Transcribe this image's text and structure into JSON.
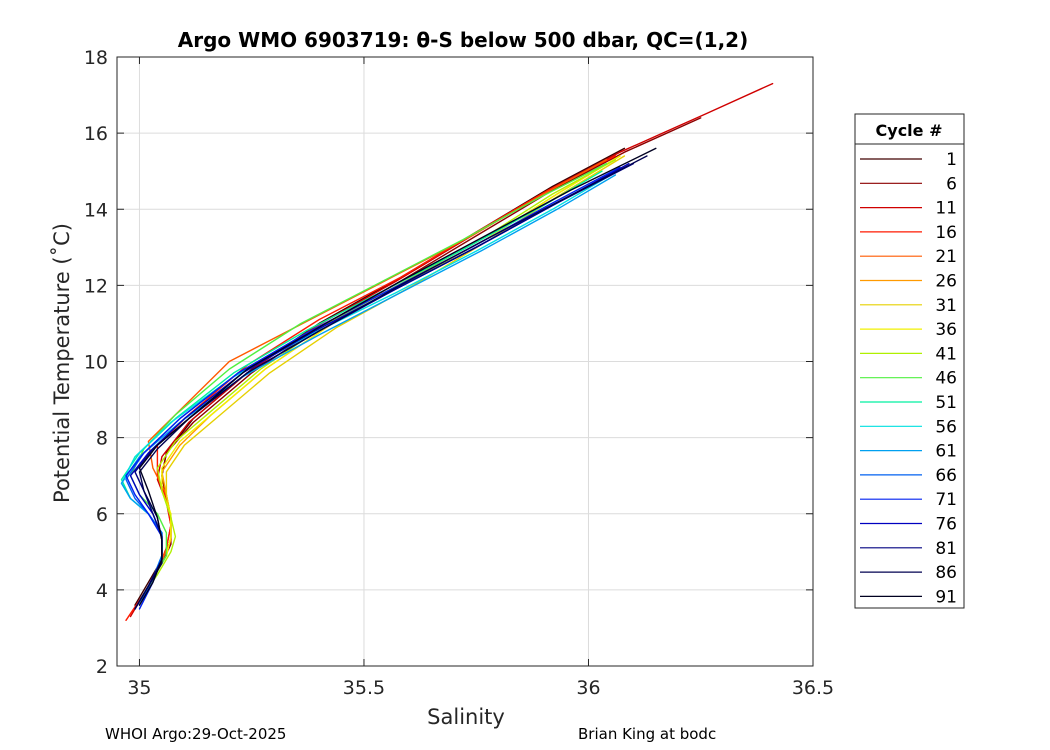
{
  "chart_data": {
    "type": "line",
    "title": "Argo WMO 6903719: θ-S below 500 dbar,  QC=(1,2)",
    "xlabel": "Salinity",
    "ylabel": "Potential Temperature (˚C)",
    "xlim": [
      34.95,
      36.5
    ],
    "ylim": [
      2,
      18
    ],
    "xticks": [
      35,
      35.5,
      36,
      36.5
    ],
    "xtick_labels": [
      "35",
      "35.5",
      "36",
      "36.5"
    ],
    "yticks": [
      2,
      4,
      6,
      8,
      10,
      12,
      14,
      16,
      18
    ],
    "ytick_labels": [
      "2",
      "4",
      "6",
      "8",
      "10",
      "12",
      "14",
      "16",
      "18"
    ],
    "grid": true,
    "legend_title": "Cycle #",
    "legend_position": "right",
    "legend": [
      {
        "label": "1",
        "color": "#400000"
      },
      {
        "label": "6",
        "color": "#8c0000"
      },
      {
        "label": "11",
        "color": "#d00000"
      },
      {
        "label": "16",
        "color": "#ff1a00"
      },
      {
        "label": "21",
        "color": "#ff5a00"
      },
      {
        "label": "26",
        "color": "#ff9a00"
      },
      {
        "label": "31",
        "color": "#e6d000"
      },
      {
        "label": "36",
        "color": "#f2f000"
      },
      {
        "label": "41",
        "color": "#b0f000"
      },
      {
        "label": "46",
        "color": "#50f040"
      },
      {
        "label": "51",
        "color": "#00f0a0"
      },
      {
        "label": "56",
        "color": "#00e0e0"
      },
      {
        "label": "61",
        "color": "#00a0f0"
      },
      {
        "label": "66",
        "color": "#0060f0"
      },
      {
        "label": "71",
        "color": "#0020f0"
      },
      {
        "label": "76",
        "color": "#0000c0"
      },
      {
        "label": "81",
        "color": "#000080"
      },
      {
        "label": "86",
        "color": "#000050"
      },
      {
        "label": "91",
        "color": "#000020"
      }
    ],
    "series": [
      {
        "name": "1",
        "color": "#400000",
        "x": [
          34.99,
          35.02,
          35.05,
          35.07,
          35.07,
          35.06,
          35.05,
          35.06,
          35.12,
          35.25,
          35.4,
          35.58,
          35.75,
          35.92,
          36.08
        ],
        "y": [
          3.6,
          4.2,
          4.8,
          5.3,
          5.8,
          6.4,
          7.0,
          7.6,
          8.5,
          9.8,
          11.0,
          12.2,
          13.4,
          14.6,
          15.6
        ]
      },
      {
        "name": "6",
        "color": "#8c0000",
        "x": [
          34.99,
          35.02,
          35.05,
          35.07,
          35.07,
          35.06,
          35.05,
          35.06,
          35.12,
          35.25,
          35.4,
          35.58,
          35.75,
          35.92,
          36.08,
          36.25
        ],
        "y": [
          3.5,
          4.1,
          4.7,
          5.2,
          5.8,
          6.4,
          7.0,
          7.6,
          8.4,
          9.7,
          10.9,
          12.1,
          13.3,
          14.5,
          15.5,
          16.4
        ]
      },
      {
        "name": "11",
        "color": "#d00000",
        "x": [
          34.98,
          35.01,
          35.04,
          35.06,
          35.07,
          35.06,
          35.04,
          35.05,
          35.11,
          35.24,
          35.39,
          35.57,
          35.74,
          35.91,
          36.07,
          36.26,
          36.41
        ],
        "y": [
          3.3,
          3.9,
          4.5,
          5.1,
          5.7,
          6.3,
          6.9,
          7.5,
          8.4,
          9.7,
          10.9,
          12.1,
          13.3,
          14.5,
          15.5,
          16.5,
          17.3
        ]
      },
      {
        "name": "16",
        "color": "#ff1a00",
        "x": [
          34.97,
          35.01,
          35.04,
          35.06,
          35.07,
          35.06,
          35.04,
          35.04,
          35.11,
          35.24,
          35.4,
          35.58,
          35.75,
          35.91,
          36.06
        ],
        "y": [
          3.2,
          3.9,
          4.5,
          5.1,
          5.7,
          6.4,
          7.0,
          7.8,
          8.6,
          9.9,
          11.1,
          12.2,
          13.4,
          14.5,
          15.4
        ]
      },
      {
        "name": "21",
        "color": "#ff5a00",
        "x": [
          35.0,
          35.03,
          35.05,
          35.07,
          35.07,
          35.06,
          35.03,
          35.02,
          35.08,
          35.2,
          35.38,
          35.56,
          35.74,
          35.9,
          36.04
        ],
        "y": [
          3.7,
          4.3,
          4.8,
          5.3,
          5.9,
          6.5,
          7.2,
          7.9,
          8.6,
          10.0,
          11.1,
          12.2,
          13.3,
          14.4,
          15.3
        ]
      },
      {
        "name": "26",
        "color": "#ff9a00",
        "x": [
          35.0,
          35.03,
          35.06,
          35.07,
          35.07,
          35.06,
          35.05,
          35.09,
          35.16,
          35.28,
          35.43,
          35.6,
          35.77,
          35.93,
          36.07
        ],
        "y": [
          3.7,
          4.3,
          4.9,
          5.4,
          5.9,
          6.5,
          7.1,
          7.8,
          8.6,
          9.8,
          11.0,
          12.1,
          13.2,
          14.4,
          15.4
        ]
      },
      {
        "name": "31",
        "color": "#e6d000",
        "x": [
          35.0,
          35.03,
          35.06,
          35.07,
          35.07,
          35.06,
          35.06,
          35.1,
          35.17,
          35.29,
          35.44,
          35.61,
          35.78,
          35.94,
          36.08
        ],
        "y": [
          3.7,
          4.3,
          4.9,
          5.4,
          5.9,
          6.5,
          7.1,
          7.8,
          8.5,
          9.7,
          10.9,
          12.0,
          13.2,
          14.4,
          15.4
        ]
      },
      {
        "name": "36",
        "color": "#f2f000",
        "x": [
          35.0,
          35.03,
          35.06,
          35.07,
          35.07,
          35.05,
          35.05,
          35.09,
          35.16,
          35.28,
          35.43,
          35.6,
          35.77,
          35.93,
          36.07
        ],
        "y": [
          3.7,
          4.3,
          4.9,
          5.4,
          6.0,
          6.6,
          7.2,
          7.9,
          8.6,
          9.8,
          11.0,
          12.1,
          13.2,
          14.4,
          15.4
        ]
      },
      {
        "name": "41",
        "color": "#b0f000",
        "x": [
          35.0,
          35.04,
          35.07,
          35.08,
          35.07,
          35.05,
          35.04,
          35.08,
          35.15,
          35.27,
          35.42,
          35.59,
          35.76,
          35.92,
          36.06
        ],
        "y": [
          3.7,
          4.4,
          5.0,
          5.4,
          5.9,
          6.6,
          7.2,
          7.9,
          8.6,
          9.8,
          11.0,
          12.1,
          13.2,
          14.4,
          15.3
        ]
      },
      {
        "name": "46",
        "color": "#50f040",
        "x": [
          35.0,
          35.03,
          35.06,
          35.06,
          35.04,
          35.0,
          34.98,
          35.01,
          35.08,
          35.2,
          35.36,
          35.54,
          35.72,
          35.89,
          36.04
        ],
        "y": [
          3.7,
          4.3,
          4.9,
          5.5,
          6.0,
          6.5,
          7.0,
          7.7,
          8.6,
          9.8,
          11.0,
          12.1,
          13.2,
          14.3,
          15.2
        ]
      },
      {
        "name": "51",
        "color": "#00f0a0",
        "x": [
          35.0,
          35.03,
          35.05,
          35.05,
          35.02,
          34.98,
          34.96,
          35.0,
          35.08,
          35.21,
          35.37,
          35.55,
          35.73,
          35.9,
          36.03
        ],
        "y": [
          3.7,
          4.3,
          4.9,
          5.5,
          6.0,
          6.4,
          6.9,
          7.6,
          8.5,
          9.7,
          10.8,
          11.9,
          13.0,
          14.1,
          15.0
        ]
      },
      {
        "name": "56",
        "color": "#00e0e0",
        "x": [
          35.0,
          35.03,
          35.05,
          35.05,
          35.02,
          34.98,
          34.96,
          34.99,
          35.07,
          35.21,
          35.38,
          35.57,
          35.75,
          35.92,
          36.05
        ],
        "y": [
          3.7,
          4.3,
          4.9,
          5.5,
          6.0,
          6.4,
          6.8,
          7.5,
          8.4,
          9.6,
          10.7,
          11.8,
          12.9,
          14.0,
          14.9
        ]
      },
      {
        "name": "61",
        "color": "#00a0f0",
        "x": [
          35.0,
          35.03,
          35.05,
          35.05,
          35.02,
          34.98,
          34.96,
          35.0,
          35.09,
          35.23,
          35.4,
          35.58,
          35.76,
          35.93,
          36.06
        ],
        "y": [
          3.7,
          4.3,
          4.9,
          5.5,
          6.0,
          6.4,
          6.8,
          7.5,
          8.4,
          9.6,
          10.7,
          11.8,
          12.9,
          14.0,
          14.9
        ]
      },
      {
        "name": "66",
        "color": "#0060f0",
        "x": [
          35.0,
          35.03,
          35.05,
          35.05,
          35.02,
          34.99,
          34.97,
          35.01,
          35.09,
          35.22,
          35.39,
          35.57,
          35.75,
          35.92,
          36.06
        ],
        "y": [
          3.6,
          4.3,
          4.9,
          5.5,
          6.0,
          6.4,
          6.9,
          7.6,
          8.5,
          9.7,
          10.8,
          11.9,
          13.0,
          14.1,
          15.0
        ]
      },
      {
        "name": "71",
        "color": "#0020f0",
        "x": [
          35.0,
          35.03,
          35.05,
          35.05,
          35.02,
          34.99,
          34.97,
          35.01,
          35.09,
          35.22,
          35.38,
          35.56,
          35.74,
          35.91,
          36.07
        ],
        "y": [
          3.5,
          4.2,
          4.8,
          5.4,
          6.0,
          6.5,
          7.0,
          7.6,
          8.5,
          9.7,
          10.8,
          11.9,
          13.0,
          14.1,
          15.1
        ]
      },
      {
        "name": "76",
        "color": "#0000c0",
        "x": [
          34.99,
          35.02,
          35.05,
          35.05,
          35.03,
          35.0,
          34.98,
          35.02,
          35.1,
          35.23,
          35.39,
          35.57,
          35.75,
          35.92,
          36.09
        ],
        "y": [
          3.5,
          4.1,
          4.8,
          5.4,
          6.0,
          6.5,
          7.0,
          7.6,
          8.5,
          9.7,
          10.8,
          11.9,
          13.0,
          14.1,
          15.2
        ]
      },
      {
        "name": "81",
        "color": "#000080",
        "x": [
          34.99,
          35.02,
          35.05,
          35.05,
          35.03,
          35.01,
          34.99,
          35.03,
          35.11,
          35.24,
          35.4,
          35.57,
          35.75,
          35.92,
          36.1
        ],
        "y": [
          3.5,
          4.1,
          4.8,
          5.4,
          6.0,
          6.6,
          7.1,
          7.7,
          8.5,
          9.7,
          10.8,
          11.9,
          13.0,
          14.1,
          15.2
        ]
      },
      {
        "name": "86",
        "color": "#000050",
        "x": [
          34.99,
          35.02,
          35.05,
          35.05,
          35.04,
          35.01,
          35.0,
          35.04,
          35.11,
          35.24,
          35.4,
          35.58,
          35.77,
          35.95,
          36.13
        ],
        "y": [
          3.5,
          4.1,
          4.7,
          5.3,
          5.9,
          6.6,
          7.1,
          7.7,
          8.5,
          9.7,
          10.8,
          12.0,
          13.2,
          14.3,
          15.4
        ]
      },
      {
        "name": "91",
        "color": "#000020",
        "x": [
          35.0,
          35.03,
          35.05,
          35.05,
          35.04,
          35.02,
          35.0,
          35.04,
          35.12,
          35.24,
          35.4,
          35.58,
          35.77,
          35.96,
          36.15
        ],
        "y": [
          3.6,
          4.2,
          4.8,
          5.3,
          5.9,
          6.6,
          7.2,
          7.8,
          8.6,
          9.8,
          10.9,
          12.1,
          13.3,
          14.5,
          15.6
        ]
      }
    ]
  },
  "footer": {
    "left": "WHOI Argo:29-Oct-2025",
    "right": "Brian King at bodc"
  }
}
